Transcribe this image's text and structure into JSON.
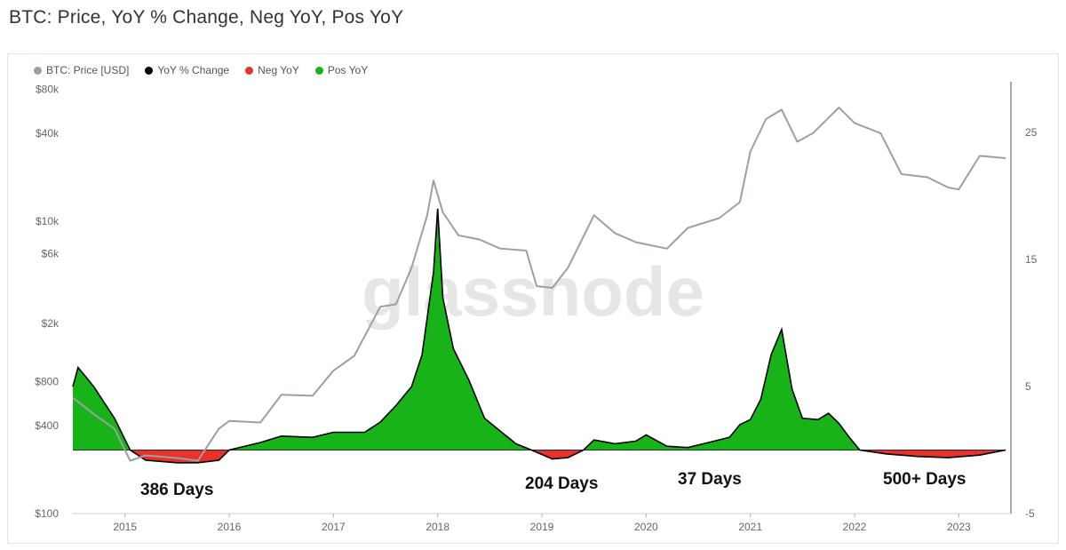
{
  "title": "BTC: Price, YoY % Change, Neg YoY, Pos YoY",
  "watermark": "glassnode",
  "colors": {
    "price": "#9aa1a6",
    "yoy": "#000000",
    "neg": "#e8312a",
    "pos": "#18b318",
    "axis": "#9a9a9a"
  },
  "legend": [
    {
      "label": "BTC: Price [USD]",
      "color": "#9aa1a6"
    },
    {
      "label": "YoY % Change",
      "color": "#000000"
    },
    {
      "label": "Neg YoY",
      "color": "#e8312a"
    },
    {
      "label": "Pos YoY",
      "color": "#18b318"
    }
  ],
  "annotations": [
    "386 Days",
    "204 Days",
    "37 Days",
    "500+ Days"
  ],
  "chart_data": {
    "type": "line",
    "title": "BTC: Price, YoY % Change, Neg YoY, Pos YoY",
    "x_range": [
      2014.5,
      2023.5
    ],
    "x_ticks": [
      "2015",
      "2016",
      "2017",
      "2018",
      "2019",
      "2020",
      "2021",
      "2022",
      "2023"
    ],
    "left_axis": {
      "scale": "log",
      "range": [
        100,
        90000
      ],
      "ticks": [
        "$100",
        "$400",
        "$800",
        "$2k",
        "$6k",
        "$10k",
        "$40k",
        "$80k"
      ],
      "tick_values": [
        100,
        400,
        800,
        2000,
        6000,
        10000,
        40000,
        80000
      ]
    },
    "right_axis": {
      "scale": "linear",
      "range": [
        -5,
        29
      ],
      "ticks": [
        "-5",
        "5",
        "15",
        "25"
      ],
      "tick_values": [
        -5,
        5,
        15,
        25
      ]
    },
    "series": [
      {
        "name": "BTC: Price [USD]",
        "axis": "left",
        "x": [
          2014.5,
          2014.7,
          2014.9,
          2015.05,
          2015.2,
          2015.5,
          2015.7,
          2015.9,
          2016.0,
          2016.3,
          2016.5,
          2016.8,
          2017.0,
          2017.2,
          2017.45,
          2017.6,
          2017.75,
          2017.9,
          2017.96,
          2018.05,
          2018.2,
          2018.4,
          2018.6,
          2018.85,
          2018.95,
          2019.1,
          2019.25,
          2019.5,
          2019.7,
          2019.9,
          2020.2,
          2020.4,
          2020.7,
          2020.9,
          2021.0,
          2021.15,
          2021.3,
          2021.45,
          2021.6,
          2021.85,
          2022.0,
          2022.25,
          2022.45,
          2022.7,
          2022.9,
          2023.0,
          2023.2,
          2023.45
        ],
        "y": [
          620,
          480,
          380,
          230,
          250,
          240,
          230,
          380,
          430,
          420,
          650,
          640,
          950,
          1200,
          2600,
          2700,
          4800,
          11000,
          19000,
          11500,
          8000,
          7500,
          6500,
          6300,
          3600,
          3500,
          4800,
          11000,
          8300,
          7200,
          6500,
          9000,
          10500,
          13500,
          30000,
          50000,
          58000,
          35000,
          40000,
          60000,
          47000,
          40000,
          21000,
          20000,
          17000,
          16500,
          28000,
          27000
        ]
      },
      {
        "name": "YoY % Change",
        "axis": "right",
        "x": [
          2014.5,
          2014.55,
          2014.7,
          2014.9,
          2015.05,
          2015.2,
          2015.5,
          2015.7,
          2015.9,
          2016.0,
          2016.3,
          2016.5,
          2016.8,
          2017.0,
          2017.3,
          2017.45,
          2017.6,
          2017.75,
          2017.85,
          2017.96,
          2018.0,
          2018.05,
          2018.15,
          2018.3,
          2018.45,
          2018.6,
          2018.75,
          2018.9,
          2019.1,
          2019.25,
          2019.4,
          2019.5,
          2019.7,
          2019.9,
          2020.0,
          2020.2,
          2020.4,
          2020.55,
          2020.7,
          2020.8,
          2020.9,
          2021.0,
          2021.1,
          2021.2,
          2021.3,
          2021.4,
          2021.5,
          2021.65,
          2021.75,
          2021.85,
          2021.95,
          2022.05,
          2022.3,
          2022.6,
          2022.9,
          2023.2,
          2023.45
        ],
        "y": [
          5,
          6.5,
          5,
          2.5,
          0,
          -0.8,
          -1,
          -1,
          -0.8,
          0,
          0.6,
          1.1,
          1.0,
          1.4,
          1.4,
          2.2,
          3.5,
          5.0,
          7.5,
          14,
          19,
          12,
          8,
          5.5,
          2.5,
          1.5,
          0.5,
          0,
          -0.7,
          -0.6,
          0,
          0.8,
          0.5,
          0.7,
          1.2,
          0.3,
          0.2,
          0.5,
          0.8,
          1.0,
          2.0,
          2.4,
          4.0,
          7.5,
          9.5,
          4.8,
          2.5,
          2.4,
          2.9,
          2.1,
          1.0,
          0,
          -0.3,
          -0.5,
          -0.6,
          -0.4,
          0
        ]
      },
      {
        "name": "Neg YoY",
        "axis": "right",
        "color": "#e8312a",
        "note": "area where YoY % Change < 0"
      },
      {
        "name": "Pos YoY",
        "axis": "right",
        "color": "#18b318",
        "note": "area where YoY % Change > 0"
      }
    ],
    "grid": false,
    "legend_position": "top-left"
  }
}
